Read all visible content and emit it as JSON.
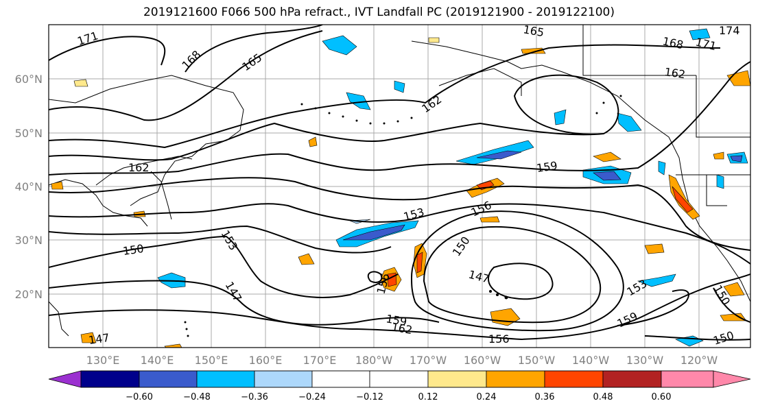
{
  "title": "2019121600 F066 500 hPa refract., IVT Landfall PC (2019121900 - 2019122100)",
  "map": {
    "lon_ticks": [
      "130°E",
      "140°E",
      "150°E",
      "160°E",
      "170°E",
      "180°W",
      "170°W",
      "160°W",
      "150°W",
      "140°W",
      "130°W",
      "120°W"
    ],
    "lat_ticks": [
      "60°N",
      "50°N",
      "40°N",
      "30°N",
      "20°N"
    ],
    "gridlines": true,
    "contour_labels": [
      "171",
      "168",
      "165",
      "165",
      "162",
      "168",
      "171",
      "174",
      "162",
      "162",
      "159",
      "153",
      "156",
      "153",
      "150",
      "147",
      "150",
      "147",
      "156",
      "159",
      "162",
      "156",
      "153",
      "159",
      "150",
      "150",
      "147"
    ]
  },
  "colorbar": {
    "ticks": [
      "−0.60",
      "−0.48",
      "−0.36",
      "−0.24",
      "−0.12",
      "0.12",
      "0.24",
      "0.36",
      "0.48",
      "0.60"
    ],
    "colors": [
      "#9b30d0",
      "#00008b",
      "#3a5bcc",
      "#00bfff",
      "#add8fb",
      "#ffffff",
      "#ffe98c",
      "#ffa500",
      "#ff4500",
      "#b22222",
      "#ff88aa"
    ]
  }
}
